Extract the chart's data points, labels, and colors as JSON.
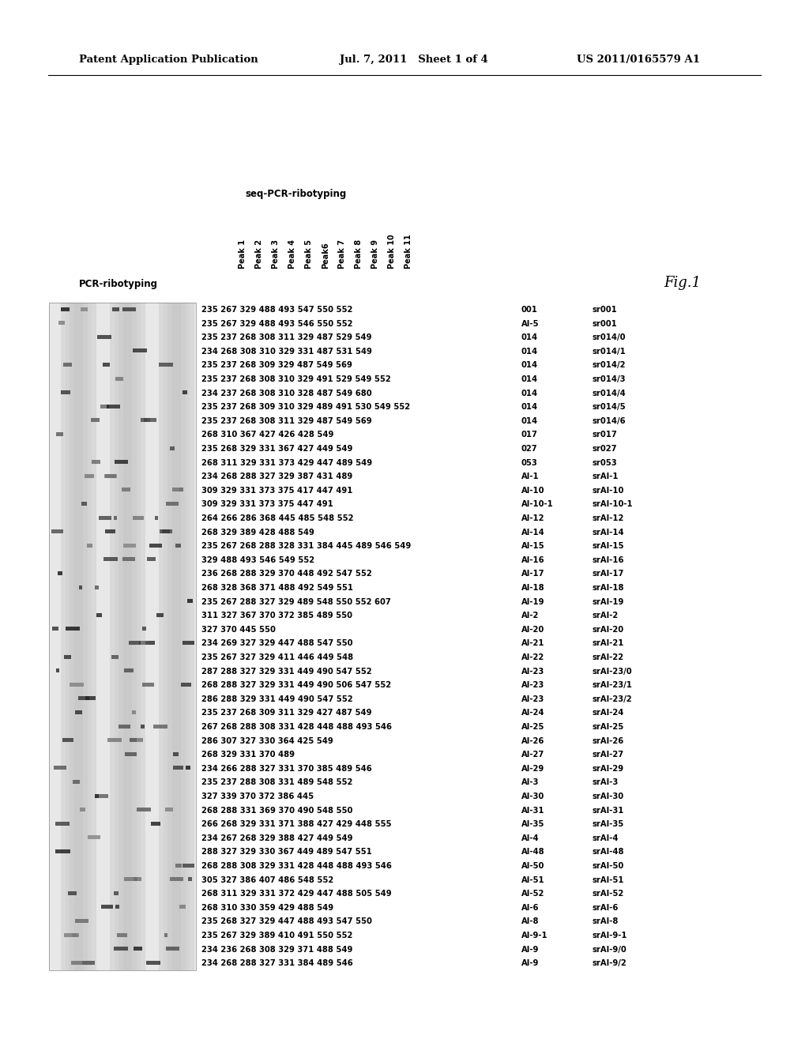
{
  "header_left": "Patent Application Publication",
  "header_mid": "Jul. 7, 2011   Sheet 1 of 4",
  "header_right": "US 2011/0165579 A1",
  "col_header_seq": "seq-PCR-ribotyping",
  "col_header_pcr": "PCR-ribotyping",
  "peak_labels": [
    "Peak 1",
    "Peak 2",
    "Peak 3",
    "Peak 4",
    "Peak 5",
    "Peak6",
    "Peak 7",
    "Peak 8",
    "Peak 9",
    "Peak 10",
    "Peak 11"
  ],
  "fig_label": "Fig.1",
  "rows": [
    {
      "peaks": "235 267 329 488 493 547 550 552",
      "pcr": "001",
      "sr": "sr001"
    },
    {
      "peaks": "235 267 329 488 493 546 550 552",
      "pcr": "AI-5",
      "sr": "sr001"
    },
    {
      "peaks": "235 237 268 308 311 329 487 529 549",
      "pcr": "014",
      "sr": "sr014/0"
    },
    {
      "peaks": "234 268 308 310 329 331 487 531 549",
      "pcr": "014",
      "sr": "sr014/1"
    },
    {
      "peaks": "235 237 268 309 329 487 549 569",
      "pcr": "014",
      "sr": "sr014/2"
    },
    {
      "peaks": "235 237 268 308 310 329 491 529 549 552",
      "pcr": "014",
      "sr": "sr014/3"
    },
    {
      "peaks": "234 237 268 308 310 328 487 549 680",
      "pcr": "014",
      "sr": "sr014/4"
    },
    {
      "peaks": "235 237 268 309 310 329 489 491 530 549 552",
      "pcr": "014",
      "sr": "sr014/5"
    },
    {
      "peaks": "235 237 268 308 311 329 487 549 569",
      "pcr": "014",
      "sr": "sr014/6"
    },
    {
      "peaks": "268 310 367 427 426 428 549",
      "pcr": "017",
      "sr": "sr017"
    },
    {
      "peaks": "235 268 329 331 367 427 449 549",
      "pcr": "027",
      "sr": "sr027"
    },
    {
      "peaks": "268 311 329 331 373 429 447 489 549",
      "pcr": "053",
      "sr": "sr053"
    },
    {
      "peaks": "234 268 288 327 329 387 431 489",
      "pcr": "AI-1",
      "sr": "srAI-1"
    },
    {
      "peaks": "309 329 331 373 375 417 447 491",
      "pcr": "AI-10",
      "sr": "srAI-10"
    },
    {
      "peaks": "309 329 331 373 375 447 491",
      "pcr": "AI-10-1",
      "sr": "srAI-10-1"
    },
    {
      "peaks": "264 266 286 368 445 485 548 552",
      "pcr": "AI-12",
      "sr": "srAI-12"
    },
    {
      "peaks": "268 329 389 428 488 549",
      "pcr": "AI-14",
      "sr": "srAI-14"
    },
    {
      "peaks": "235 267 268 288 328 331 384 445 489 546 549",
      "pcr": "AI-15",
      "sr": "srAI-15"
    },
    {
      "peaks": "329 488 493 546 549 552",
      "pcr": "AI-16",
      "sr": "srAI-16"
    },
    {
      "peaks": "236 268 288 329 370 448 492 547 552",
      "pcr": "AI-17",
      "sr": "srAI-17"
    },
    {
      "peaks": "268 328 368 371 488 492 549 551",
      "pcr": "AI-18",
      "sr": "srAI-18"
    },
    {
      "peaks": "235 267 288 327 329 489 548 550 552 607",
      "pcr": "AI-19",
      "sr": "srAI-19"
    },
    {
      "peaks": "311 327 367 370 372 385 489 550",
      "pcr": "AI-2",
      "sr": "srAI-2"
    },
    {
      "peaks": "327 370 445 550",
      "pcr": "AI-20",
      "sr": "srAI-20"
    },
    {
      "peaks": "234 269 327 329 447 488 547 550",
      "pcr": "AI-21",
      "sr": "srAI-21"
    },
    {
      "peaks": "235 267 327 329 411 446 449 548",
      "pcr": "AI-22",
      "sr": "srAI-22"
    },
    {
      "peaks": "287 288 327 329 331 449 490 547 552",
      "pcr": "AI-23",
      "sr": "srAI-23/0"
    },
    {
      "peaks": "268 288 327 329 331 449 490 506 547 552",
      "pcr": "AI-23",
      "sr": "srAI-23/1"
    },
    {
      "peaks": "286 288 329 331 449 490 547 552",
      "pcr": "AI-23",
      "sr": "srAI-23/2"
    },
    {
      "peaks": "235 237 268 309 311 329 427 487 549",
      "pcr": "AI-24",
      "sr": "srAI-24"
    },
    {
      "peaks": "267 268 288 308 331 428 448 488 493 546",
      "pcr": "AI-25",
      "sr": "srAI-25"
    },
    {
      "peaks": "286 307 327 330 364 425 549",
      "pcr": "AI-26",
      "sr": "srAI-26"
    },
    {
      "peaks": "268 329 331 370 489",
      "pcr": "AI-27",
      "sr": "srAI-27"
    },
    {
      "peaks": "234 266 288 327 331 370 385 489 546",
      "pcr": "AI-29",
      "sr": "srAI-29"
    },
    {
      "peaks": "235 237 288 308 331 489 548 552",
      "pcr": "AI-3",
      "sr": "srAI-3"
    },
    {
      "peaks": "327 339 370 372 386 445",
      "pcr": "AI-30",
      "sr": "srAI-30"
    },
    {
      "peaks": "268 288 331 369 370 490 548 550",
      "pcr": "AI-31",
      "sr": "srAI-31"
    },
    {
      "peaks": "266 268 329 331 371 388 427 429 448 555",
      "pcr": "AI-35",
      "sr": "srAI-35"
    },
    {
      "peaks": "234 267 268 329 388 427 449 549",
      "pcr": "AI-4",
      "sr": "srAI-4"
    },
    {
      "peaks": "288 327 329 330 367 449 489 547 551",
      "pcr": "AI-48",
      "sr": "srAI-48"
    },
    {
      "peaks": "268 288 308 329 331 428 448 488 493 546",
      "pcr": "AI-50",
      "sr": "srAI-50"
    },
    {
      "peaks": "305 327 386 407 486 548 552",
      "pcr": "AI-51",
      "sr": "srAI-51"
    },
    {
      "peaks": "268 311 329 331 372 429 447 488 505 549",
      "pcr": "AI-52",
      "sr": "srAI-52"
    },
    {
      "peaks": "268 310 330 359 429 488 549",
      "pcr": "AI-6",
      "sr": "srAI-6"
    },
    {
      "peaks": "235 268 327 329 447 488 493 547 550",
      "pcr": "AI-8",
      "sr": "srAI-8"
    },
    {
      "peaks": "235 267 329 389 410 491 550 552",
      "pcr": "AI-9-1",
      "sr": "srAI-9-1"
    },
    {
      "peaks": "234 236 268 308 329 371 488 549",
      "pcr": "AI-9",
      "sr": "srAI-9/0"
    },
    {
      "peaks": "234 268 288 327 331 384 489 546",
      "pcr": "AI-9",
      "sr": "srAI-9/2"
    }
  ],
  "bg_color": "#ffffff",
  "text_color": "#000000",
  "gel_color_light": "#cccccc",
  "gel_color_dark": "#333333"
}
